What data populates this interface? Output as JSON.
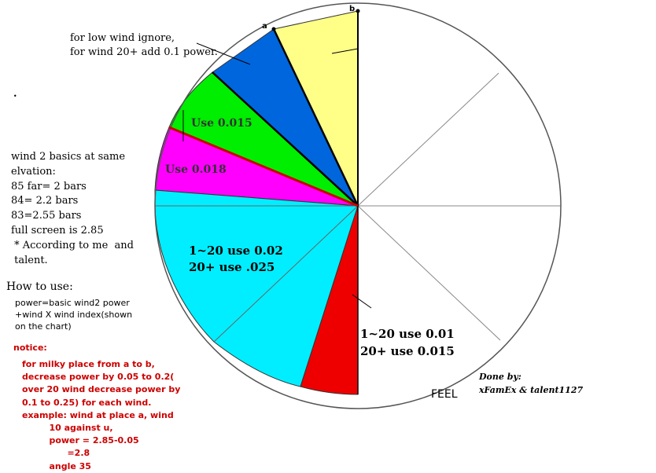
{
  "title": "",
  "markers": {
    "a": "a",
    "b": "b"
  },
  "sectors": [
    {
      "label": "",
      "color": "#ffff88"
    },
    {
      "label": "",
      "color": "#0066dd"
    },
    {
      "label": "Use 0.015",
      "color": "#00ee00"
    },
    {
      "label": "Use 0.018",
      "color": "#ff00ff"
    },
    {
      "label": "1~20 use 0.02\n20+ use .025",
      "color": "#00eeff"
    },
    {
      "label": "",
      "color": "#ee0000"
    },
    {
      "label": "1~20 use 0.01\n20+ use 0.015",
      "color": "#ffffff"
    }
  ],
  "notes": {
    "low_wind": "for low wind ignore,\nfor wind 20+ add 0.1 power.",
    "dot": ".",
    "basics": "wind 2 basics at same\nelvation:\n85 far= 2 bars\n84= 2.2 bars\n83=2.55 bars\nfull screen is 2.85\n * According to me  and\n talent.",
    "how_to_title": "How to use:",
    "how_to_body": "power=basic wind2 power\n+wind X wind index(shown\non the chart)",
    "notice_title": "notice:",
    "notice_body": "for milky place from a to b,\ndecrease power by 0.05 to 0.2(\nover 20 wind decrease power by\n0.1 to 0.25) for each wind.\nexample: wind at place a, wind\n         10 against u,\n         power = 2.85-0.05\n               =2.8\n         angle 35",
    "feel": "FEEL",
    "credit": "Done by:\nxFamEx & talent1127"
  },
  "colors": {
    "background": "#ffffff",
    "outline": "#555555",
    "notice_text": "#cc0000"
  }
}
